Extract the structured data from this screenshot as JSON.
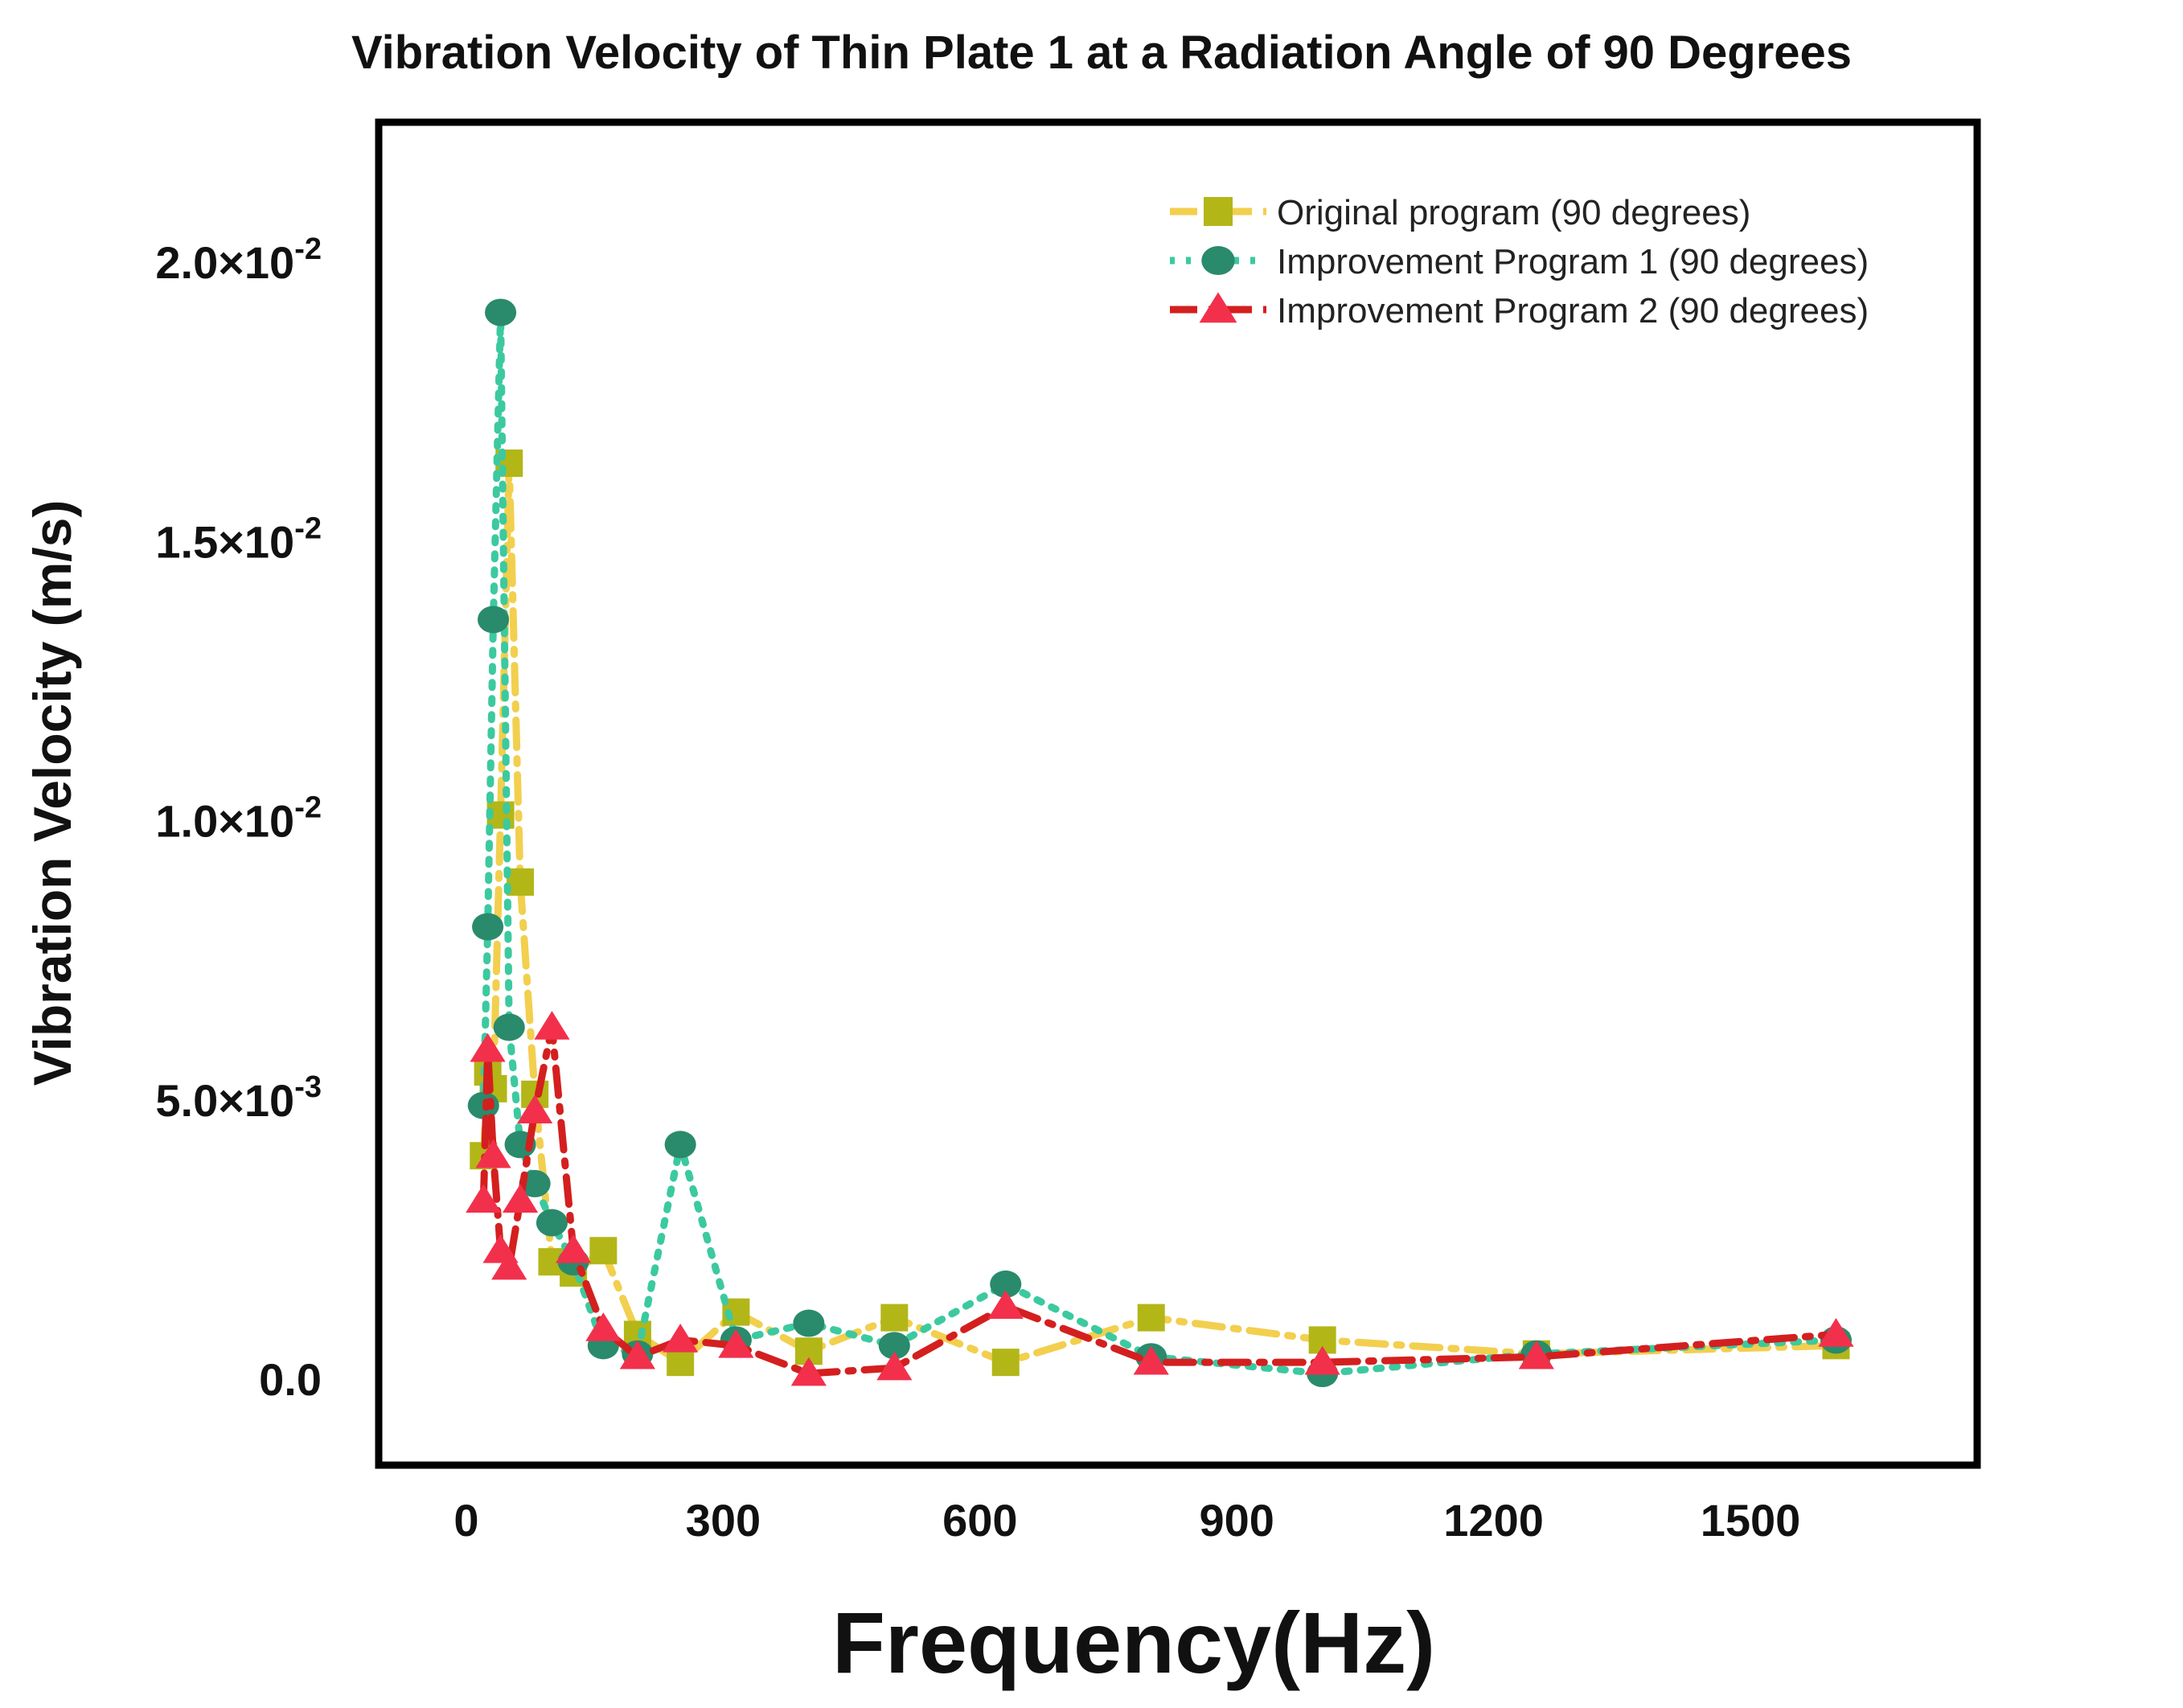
{
  "chart_data": {
    "type": "line",
    "title": "Vibration Velocity of Thin Plate 1 at a Radiation Angle of 90 Degrees",
    "xlabel": "Frequency(Hz)",
    "ylabel": "Vibration Velocity (m/s)",
    "xlim": [
      -100,
      1750
    ],
    "ylim": [
      -0.0017,
      0.0225
    ],
    "x_ticks": [
      0,
      300,
      600,
      900,
      1200,
      1500
    ],
    "x_tick_labels": [
      "0",
      "300",
      "600",
      "900",
      "1200",
      "1500"
    ],
    "y_ticks": [
      0,
      0.005,
      0.01,
      0.015,
      0.02
    ],
    "y_tick_labels": [
      "0.0",
      "5.0×10",
      "1.0×10",
      "1.5×10",
      "2.0×10"
    ],
    "y_tick_exponents": [
      "",
      "-3",
      "-2",
      "-2",
      "-2"
    ],
    "grid": false,
    "legend_position": "top-right",
    "x": [
      20,
      25,
      31.5,
      40,
      50,
      63,
      80,
      100,
      125,
      160,
      200,
      250,
      315,
      400,
      500,
      630,
      800,
      1000,
      1250,
      1600
    ],
    "series": [
      {
        "name": "Original program (90 degrees)",
        "line_color": "#f2cf4e",
        "marker_color": "#b3b617",
        "marker": "square",
        "values": [
          0.004,
          0.0055,
          0.0052,
          0.0101,
          0.0164,
          0.0089,
          0.0051,
          0.0021,
          0.0019,
          0.0023,
          0.0008,
          0.0003,
          0.0012,
          0.0005,
          0.0011,
          0.0003,
          0.0011,
          0.0007,
          0.00045,
          0.0006
        ]
      },
      {
        "name": "Improvement Program 1 (90 degrees)",
        "line_color": "#3cc9a0",
        "marker_color": "#2a8a6c",
        "marker": "circle",
        "values": [
          0.0049,
          0.0081,
          0.0136,
          0.0191,
          0.0063,
          0.0042,
          0.0035,
          0.0028,
          0.0021,
          0.0006,
          0.00045,
          0.0042,
          0.0007,
          0.001,
          0.0006,
          0.0017,
          0.0004,
          0.0001,
          0.00045,
          0.0007
        ]
      },
      {
        "name": "Improvement Program 2 (90 degrees)",
        "line_color": "#d41f1f",
        "marker_color": "#f2304c",
        "marker": "triangle",
        "values": [
          0.0032,
          0.0059,
          0.004,
          0.0023,
          0.002,
          0.0032,
          0.0048,
          0.0063,
          0.0023,
          0.0009,
          0.0004,
          0.0007,
          0.0006,
          0.0001,
          0.0002,
          0.0013,
          0.0003,
          0.0003,
          0.0004,
          0.0008
        ]
      }
    ]
  }
}
